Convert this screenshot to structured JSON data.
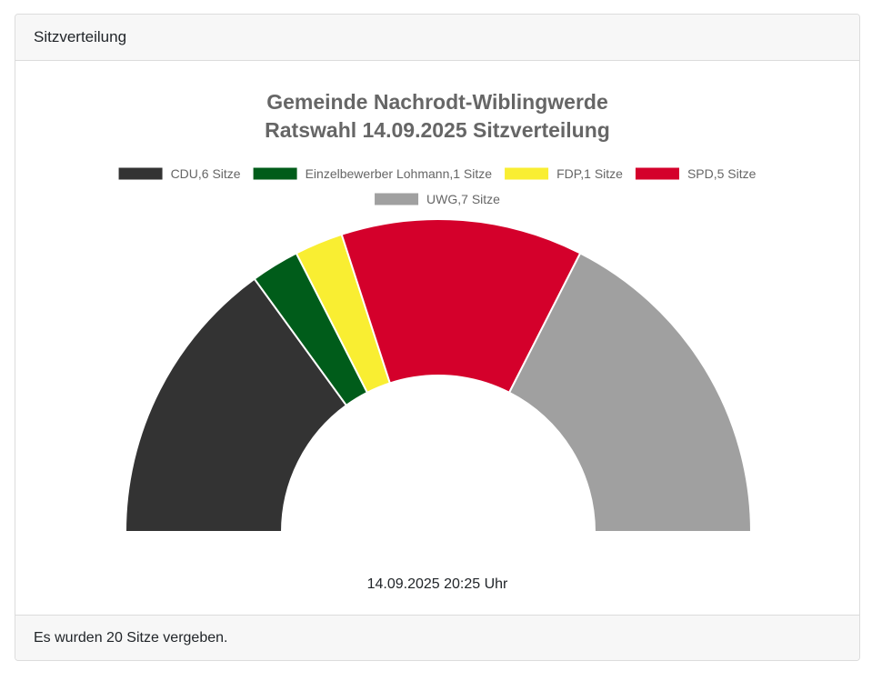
{
  "panel": {
    "header": "Sitzverteilung",
    "footer": "Es wurden 20 Sitze vergeben.",
    "timestamp": "14.09.2025 20:25 Uhr"
  },
  "chart_data": {
    "type": "pie",
    "variant": "half-donut",
    "title": [
      "Gemeinde Nachrodt-Wiblingwerde",
      "Ratswahl 14.09.2025 Sitzverteilung"
    ],
    "legend_position": "top",
    "total_seats": 20,
    "series": [
      {
        "name": "CDU",
        "label": "CDU,6 Sitze",
        "value": 6,
        "color": "#333333"
      },
      {
        "name": "Einzelbewerber Lohmann",
        "label": "Einzelbewerber Lohmann,1 Sitze",
        "value": 1,
        "color": "#005c1a"
      },
      {
        "name": "FDP",
        "label": "FDP,1 Sitze",
        "value": 1,
        "color": "#f9ee32"
      },
      {
        "name": "SPD",
        "label": "SPD,5 Sitze",
        "value": 5,
        "color": "#d4002b"
      },
      {
        "name": "UWG",
        "label": "UWG,7 Sitze",
        "value": 7,
        "color": "#a0a0a0"
      }
    ]
  }
}
